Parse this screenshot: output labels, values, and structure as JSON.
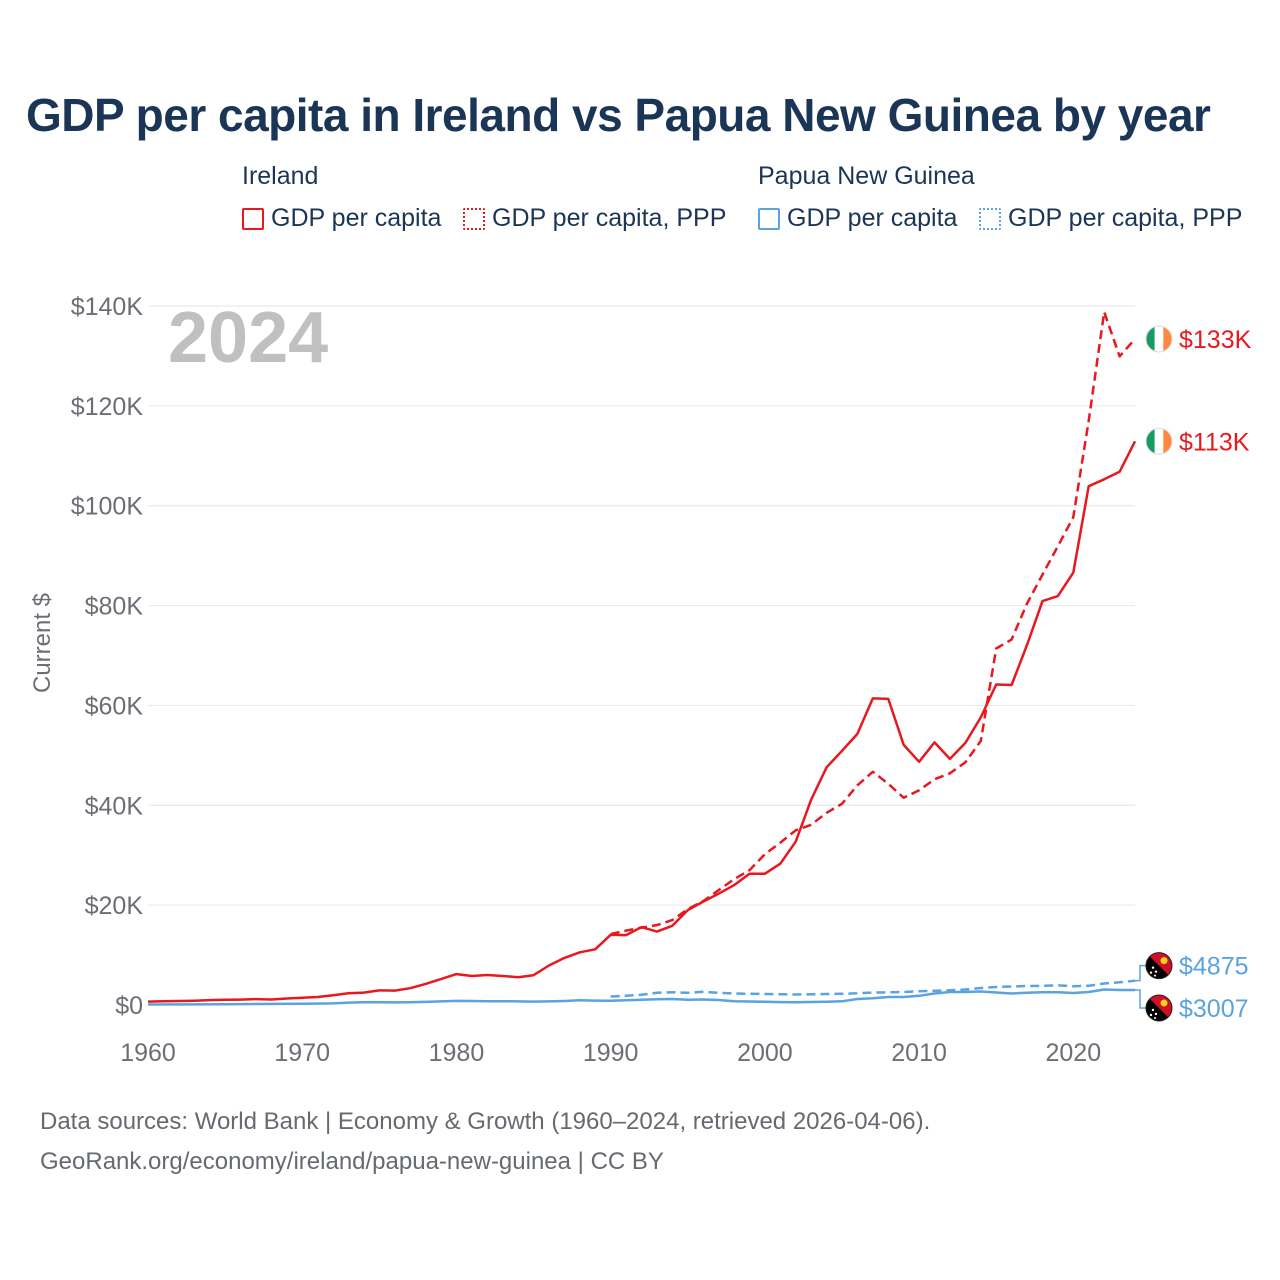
{
  "title": "GDP per capita in Ireland vs Papua New Guinea by year",
  "legend": {
    "groups": [
      {
        "name": "Ireland",
        "items": [
          {
            "label": "GDP per capita",
            "style": "solid",
            "color": "#e8191e"
          },
          {
            "label": "GDP per capita, PPP",
            "style": "dotted",
            "color": "#e8191e"
          }
        ]
      },
      {
        "name": "Papua New Guinea",
        "items": [
          {
            "label": "GDP per capita",
            "style": "solid",
            "color": "#5aa3e0"
          },
          {
            "label": "GDP per capita, PPP",
            "style": "dotted",
            "color": "#5aa3e0"
          }
        ]
      }
    ]
  },
  "year_watermark": "2024",
  "footer": {
    "line1": "Data sources: World Bank | Economy & Growth (1960–2024, retrieved 2026-04-06).",
    "line2": "GeoRank.org/economy/ireland/papua-new-guinea | CC BY"
  },
  "chart_data": {
    "type": "line",
    "title": "GDP per capita in Ireland vs Papua New Guinea by year",
    "xlabel": "",
    "ylabel": "Current $",
    "xlim": [
      1960,
      2024
    ],
    "ylim": [
      0,
      140000
    ],
    "x_ticks": [
      1960,
      1970,
      1980,
      1990,
      2000,
      2010,
      2020
    ],
    "x_tick_labels": [
      "1960",
      "1970",
      "1980",
      "1990",
      "2000",
      "2010",
      "2020"
    ],
    "y_ticks": [
      0,
      20000,
      40000,
      60000,
      80000,
      100000,
      120000,
      140000
    ],
    "y_tick_labels": [
      "$0",
      "$20K",
      "$40K",
      "$60K",
      "$80K",
      "$100K",
      "$120K",
      "$140K"
    ],
    "grid": true,
    "series": [
      {
        "name": "Ireland GDP per capita",
        "country": "Ireland",
        "color": "#e8191e",
        "dash": "solid",
        "end_label": "$113K",
        "points": [
          [
            1960,
            690
          ],
          [
            1961,
            750
          ],
          [
            1962,
            810
          ],
          [
            1963,
            870
          ],
          [
            1964,
            980
          ],
          [
            1965,
            1040
          ],
          [
            1966,
            1090
          ],
          [
            1967,
            1180
          ],
          [
            1968,
            1100
          ],
          [
            1969,
            1300
          ],
          [
            1970,
            1450
          ],
          [
            1971,
            1610
          ],
          [
            1972,
            1960
          ],
          [
            1973,
            2340
          ],
          [
            1974,
            2480
          ],
          [
            1975,
            2920
          ],
          [
            1976,
            2880
          ],
          [
            1977,
            3370
          ],
          [
            1978,
            4230
          ],
          [
            1979,
            5190
          ],
          [
            1980,
            6190
          ],
          [
            1981,
            5800
          ],
          [
            1982,
            6000
          ],
          [
            1983,
            5800
          ],
          [
            1984,
            5570
          ],
          [
            1985,
            5960
          ],
          [
            1986,
            7920
          ],
          [
            1987,
            9440
          ],
          [
            1988,
            10560
          ],
          [
            1989,
            11150
          ],
          [
            1990,
            14060
          ],
          [
            1991,
            14000
          ],
          [
            1992,
            15600
          ],
          [
            1993,
            14700
          ],
          [
            1994,
            15860
          ],
          [
            1995,
            19000
          ],
          [
            1996,
            20700
          ],
          [
            1997,
            22300
          ],
          [
            1998,
            24000
          ],
          [
            1999,
            26300
          ],
          [
            2000,
            26300
          ],
          [
            2001,
            28300
          ],
          [
            2002,
            32700
          ],
          [
            2003,
            41100
          ],
          [
            2004,
            47600
          ],
          [
            2005,
            50900
          ],
          [
            2006,
            54300
          ],
          [
            2007,
            61400
          ],
          [
            2008,
            61300
          ],
          [
            2009,
            52100
          ],
          [
            2010,
            48700
          ],
          [
            2011,
            52600
          ],
          [
            2012,
            49300
          ],
          [
            2013,
            52500
          ],
          [
            2014,
            57600
          ],
          [
            2015,
            64200
          ],
          [
            2016,
            64100
          ],
          [
            2017,
            72100
          ],
          [
            2018,
            80900
          ],
          [
            2019,
            81900
          ],
          [
            2020,
            86600
          ],
          [
            2021,
            103900
          ],
          [
            2022,
            105300
          ],
          [
            2023,
            106800
          ],
          [
            2024,
            112900
          ]
        ]
      },
      {
        "name": "Ireland GDP per capita, PPP",
        "country": "Ireland",
        "color": "#e8191e",
        "dash": "dashed",
        "end_label": "$133K",
        "points": [
          [
            1990,
            14200
          ],
          [
            1991,
            14900
          ],
          [
            1992,
            15500
          ],
          [
            1993,
            16000
          ],
          [
            1994,
            17000
          ],
          [
            1995,
            19200
          ],
          [
            1996,
            20800
          ],
          [
            1997,
            23000
          ],
          [
            1998,
            25200
          ],
          [
            1999,
            27000
          ],
          [
            2000,
            30200
          ],
          [
            2001,
            32500
          ],
          [
            2002,
            35000
          ],
          [
            2003,
            36100
          ],
          [
            2004,
            38500
          ],
          [
            2005,
            40300
          ],
          [
            2006,
            44000
          ],
          [
            2007,
            46700
          ],
          [
            2008,
            44300
          ],
          [
            2009,
            41500
          ],
          [
            2010,
            43000
          ],
          [
            2011,
            45200
          ],
          [
            2012,
            46400
          ],
          [
            2013,
            48600
          ],
          [
            2014,
            52900
          ],
          [
            2015,
            71400
          ],
          [
            2016,
            73200
          ],
          [
            2017,
            80400
          ],
          [
            2018,
            86200
          ],
          [
            2019,
            91900
          ],
          [
            2020,
            97700
          ],
          [
            2021,
            117000
          ],
          [
            2022,
            138800
          ],
          [
            2023,
            129900
          ],
          [
            2024,
            133400
          ]
        ]
      },
      {
        "name": "Papua New Guinea GDP per capita, PPP",
        "country": "Papua New Guinea",
        "color": "#5aa3e0",
        "dash": "dashed",
        "end_label": "$4875",
        "points": [
          [
            1990,
            1700
          ],
          [
            1991,
            1850
          ],
          [
            1992,
            2050
          ],
          [
            1993,
            2450
          ],
          [
            1994,
            2550
          ],
          [
            1995,
            2450
          ],
          [
            1996,
            2650
          ],
          [
            1997,
            2450
          ],
          [
            1998,
            2300
          ],
          [
            1999,
            2250
          ],
          [
            2000,
            2200
          ],
          [
            2001,
            2150
          ],
          [
            2002,
            2100
          ],
          [
            2003,
            2150
          ],
          [
            2004,
            2200
          ],
          [
            2005,
            2250
          ],
          [
            2006,
            2350
          ],
          [
            2007,
            2500
          ],
          [
            2008,
            2550
          ],
          [
            2009,
            2600
          ],
          [
            2010,
            2750
          ],
          [
            2011,
            2850
          ],
          [
            2012,
            2950
          ],
          [
            2013,
            3100
          ],
          [
            2014,
            3400
          ],
          [
            2015,
            3600
          ],
          [
            2016,
            3700
          ],
          [
            2017,
            3800
          ],
          [
            2018,
            3850
          ],
          [
            2019,
            3950
          ],
          [
            2020,
            3750
          ],
          [
            2021,
            3850
          ],
          [
            2022,
            4300
          ],
          [
            2023,
            4550
          ],
          [
            2024,
            4875
          ]
        ]
      },
      {
        "name": "Papua New Guinea GDP per capita",
        "country": "Papua New Guinea",
        "color": "#5aa3e0",
        "dash": "solid",
        "end_label": "$3007",
        "points": [
          [
            1960,
            110
          ],
          [
            1965,
            160
          ],
          [
            1970,
            260
          ],
          [
            1972,
            330
          ],
          [
            1973,
            480
          ],
          [
            1974,
            560
          ],
          [
            1975,
            540
          ],
          [
            1976,
            520
          ],
          [
            1977,
            560
          ],
          [
            1978,
            620
          ],
          [
            1979,
            720
          ],
          [
            1980,
            820
          ],
          [
            1981,
            800
          ],
          [
            1982,
            760
          ],
          [
            1983,
            760
          ],
          [
            1984,
            720
          ],
          [
            1985,
            680
          ],
          [
            1986,
            720
          ],
          [
            1987,
            800
          ],
          [
            1988,
            940
          ],
          [
            1989,
            880
          ],
          [
            1990,
            860
          ],
          [
            1991,
            950
          ],
          [
            1992,
            1050
          ],
          [
            1993,
            1150
          ],
          [
            1994,
            1200
          ],
          [
            1995,
            1050
          ],
          [
            1996,
            1100
          ],
          [
            1997,
            1000
          ],
          [
            1998,
            750
          ],
          [
            1999,
            700
          ],
          [
            2000,
            650
          ],
          [
            2001,
            580
          ],
          [
            2002,
            550
          ],
          [
            2003,
            600
          ],
          [
            2004,
            650
          ],
          [
            2005,
            750
          ],
          [
            2006,
            1200
          ],
          [
            2007,
            1350
          ],
          [
            2008,
            1600
          ],
          [
            2009,
            1600
          ],
          [
            2010,
            1850
          ],
          [
            2011,
            2300
          ],
          [
            2012,
            2600
          ],
          [
            2013,
            2600
          ],
          [
            2014,
            2700
          ],
          [
            2015,
            2500
          ],
          [
            2016,
            2300
          ],
          [
            2017,
            2450
          ],
          [
            2018,
            2550
          ],
          [
            2019,
            2550
          ],
          [
            2020,
            2400
          ],
          [
            2021,
            2600
          ],
          [
            2022,
            3100
          ],
          [
            2023,
            3000
          ],
          [
            2024,
            3007
          ]
        ]
      }
    ]
  }
}
